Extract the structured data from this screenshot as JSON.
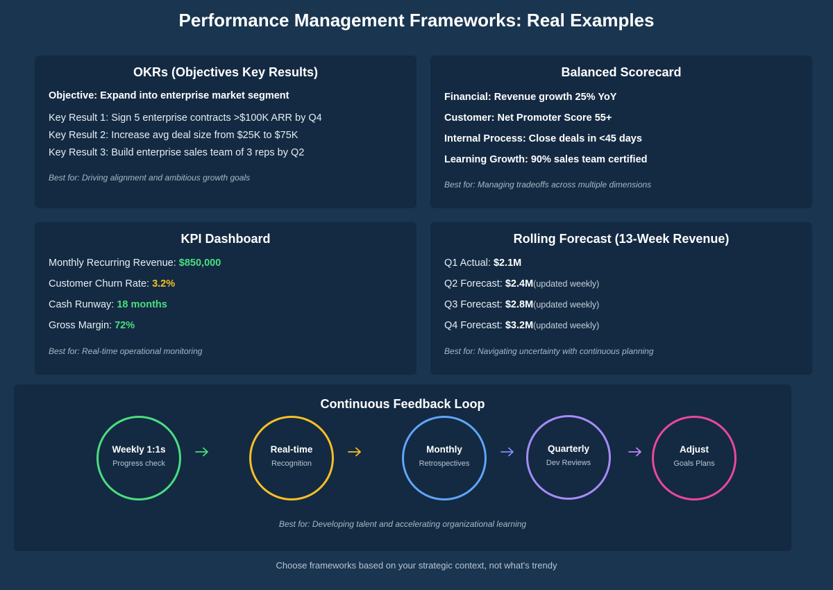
{
  "title": "Performance Management Frameworks: Real Examples",
  "okrs": {
    "title": "OKRs (Objectives Key Results)",
    "objective": "Objective: Expand into enterprise market segment",
    "key_results": [
      "Key Result 1: Sign 5 enterprise contracts >$100K ARR by Q4",
      "Key Result 2: Increase avg deal size from $25K to $75K",
      "Key Result 3: Build enterprise sales team of 3 reps by Q2"
    ],
    "best_for": "Best for: Driving alignment and ambitious growth goals"
  },
  "scorecard": {
    "title": "Balanced Scorecard",
    "items": [
      "Financial: Revenue growth 25% YoY",
      "Customer: Net Promoter Score 55+",
      "Internal Process: Close deals in <45 days",
      "Learning Growth: 90% sales team certified"
    ],
    "best_for": "Best for: Managing tradeoffs across multiple dimensions"
  },
  "kpi": {
    "title": "KPI Dashboard",
    "items": [
      {
        "label": "Monthly Recurring Revenue: ",
        "value": "$850,000",
        "color": "#4ade80"
      },
      {
        "label": "Customer Churn Rate: ",
        "value": "3.2%",
        "color": "#fbbf24"
      },
      {
        "label": "Cash Runway: ",
        "value": "18 months",
        "color": "#4ade80"
      },
      {
        "label": "Gross Margin: ",
        "value": "72%",
        "color": "#4ade80"
      }
    ],
    "best_for": "Best for: Real-time operational monitoring"
  },
  "forecast": {
    "title": "Rolling Forecast (13-Week Revenue)",
    "items": [
      {
        "label": "Q1 Actual: ",
        "value": "$2.1M",
        "note": ""
      },
      {
        "label": "Q2 Forecast: ",
        "value": "$2.4M",
        "note": "(updated weekly)"
      },
      {
        "label": "Q3 Forecast: ",
        "value": "$2.8M",
        "note": "(updated weekly)"
      },
      {
        "label": "Q4 Forecast: ",
        "value": "$3.2M",
        "note": "(updated weekly)"
      }
    ],
    "best_for": "Best for: Navigating uncertainty with continuous planning"
  },
  "loop": {
    "title": "Continuous Feedback Loop",
    "steps": [
      {
        "title": "Weekly 1:1s",
        "subtitle": "Progress check",
        "color": "#4ade80"
      },
      {
        "title": "Real-time",
        "subtitle": "Recognition",
        "color": "#fbbf24"
      },
      {
        "title": "Monthly",
        "subtitle": "Retrospectives",
        "color": "#60a5fa"
      },
      {
        "title": "Quarterly",
        "subtitle": "Dev Reviews",
        "color": "#a78bfa"
      },
      {
        "title": "Adjust",
        "subtitle": "Goals Plans",
        "color": "#ec4899"
      }
    ],
    "arrow_colors": [
      "#4ade80",
      "#fbbf24",
      "#818cf8",
      "#c084fc"
    ],
    "best_for": "Best for: Developing talent and accelerating organizational learning"
  },
  "footer": "Choose frameworks based on your strategic context, not what's trendy"
}
